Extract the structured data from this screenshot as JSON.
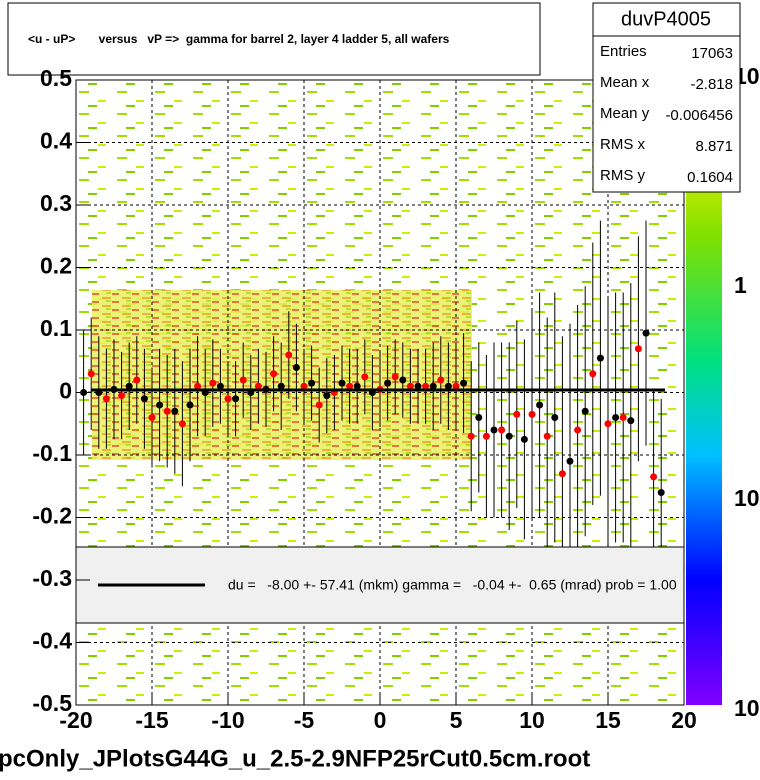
{
  "chart_data": {
    "type": "profile",
    "title": "<u - uP>       versus   vP =>  gamma for barrel 2, layer 4 ladder 5, all wafers",
    "footer": "pcOnly_JPlotsG44G_u_2.5-2.9NFP25rCut0.5cm.root",
    "legend_text": "du =   -8.00 +- 57.41 (mkm) gamma =   -0.04 +-  0.65 (mrad) prob = 1.00",
    "stats": {
      "title": "duvP4005",
      "rows": [
        {
          "label": "Entries",
          "value": 17063
        },
        {
          "label": "Mean x",
          "value": -2.818
        },
        {
          "label": "Mean y",
          "value": -0.006456
        },
        {
          "label": "RMS x",
          "value": 8.871
        },
        {
          "label": "RMS y",
          "value": 0.1604
        }
      ]
    },
    "palette_labels": [
      "10",
      "1",
      "10",
      "10"
    ],
    "xlim": [
      -20,
      20
    ],
    "xticks": [
      -20,
      -15,
      -10,
      -5,
      0,
      5,
      10,
      15,
      20
    ],
    "ylim": [
      -0.5,
      0.5
    ],
    "yticks": [
      -0.5,
      -0.4,
      -0.3,
      -0.2,
      -0.1,
      0,
      0.1,
      0.2,
      0.3,
      0.4,
      0.5
    ],
    "grid": true,
    "series": [
      {
        "name": "black",
        "color": "#000000",
        "x": [
          -19.5,
          -18.5,
          -17.5,
          -16.5,
          -15.5,
          -14.5,
          -13.5,
          -12.5,
          -11.5,
          -10.5,
          -9.5,
          -8.5,
          -7.5,
          -6.5,
          -5.5,
          -4.5,
          -3.5,
          -2.5,
          -1.5,
          -0.5,
          0.5,
          1.5,
          2.5,
          3.5,
          4.5,
          5.5,
          6.5,
          7.5,
          8.5,
          9.5,
          10.5,
          11.5,
          12.5,
          13.5,
          14.5,
          15.5,
          16.5,
          17.5,
          18.5
        ],
        "values": [
          0.0,
          0.0,
          0.005,
          0.01,
          -0.01,
          -0.02,
          -0.03,
          -0.02,
          0.0,
          0.01,
          -0.01,
          0.0,
          0.005,
          0.01,
          0.04,
          0.015,
          -0.005,
          0.015,
          0.01,
          0.0,
          0.015,
          0.02,
          0.01,
          0.01,
          0.01,
          0.015,
          -0.04,
          -0.06,
          -0.07,
          -0.075,
          -0.02,
          -0.04,
          -0.11,
          -0.03,
          0.055,
          -0.04,
          -0.045,
          0.095,
          -0.16
        ],
        "errors": [
          0.1,
          0.09,
          0.08,
          0.07,
          0.08,
          0.09,
          0.1,
          0.09,
          0.07,
          0.06,
          0.06,
          0.06,
          0.06,
          0.07,
          0.07,
          0.06,
          0.06,
          0.06,
          0.06,
          0.06,
          0.06,
          0.06,
          0.06,
          0.07,
          0.07,
          0.08,
          0.12,
          0.14,
          0.15,
          0.16,
          0.18,
          0.2,
          0.22,
          0.2,
          0.22,
          0.2,
          0.22,
          0.18,
          0.15
        ]
      },
      {
        "name": "red",
        "color": "#ff0000",
        "x": [
          -19,
          -18,
          -17,
          -16,
          -15,
          -14,
          -13,
          -12,
          -11,
          -10,
          -9,
          -8,
          -7,
          -6,
          -5,
          -4,
          -3,
          -2,
          -1,
          0,
          1,
          2,
          3,
          4,
          5,
          6,
          7,
          8,
          9,
          10,
          11,
          12,
          13,
          14,
          15,
          16,
          17,
          18
        ],
        "values": [
          0.03,
          -0.01,
          -0.005,
          0.02,
          -0.04,
          -0.03,
          -0.05,
          0.01,
          0.015,
          -0.01,
          0.02,
          0.01,
          0.03,
          0.06,
          0.01,
          -0.02,
          0.0,
          0.01,
          0.025,
          0.005,
          0.025,
          0.01,
          0.01,
          0.02,
          0.01,
          -0.07,
          -0.07,
          -0.06,
          -0.035,
          -0.035,
          -0.07,
          -0.13,
          -0.06,
          0.03,
          -0.05,
          -0.04,
          0.07,
          -0.135
        ],
        "errors": [
          0.09,
          0.08,
          0.07,
          0.07,
          0.08,
          0.09,
          0.1,
          0.08,
          0.07,
          0.06,
          0.06,
          0.06,
          0.06,
          0.07,
          0.06,
          0.06,
          0.06,
          0.06,
          0.06,
          0.06,
          0.06,
          0.06,
          0.06,
          0.07,
          0.07,
          0.12,
          0.13,
          0.14,
          0.15,
          0.17,
          0.19,
          0.22,
          0.2,
          0.21,
          0.2,
          0.2,
          0.18,
          0.14
        ]
      }
    ]
  }
}
